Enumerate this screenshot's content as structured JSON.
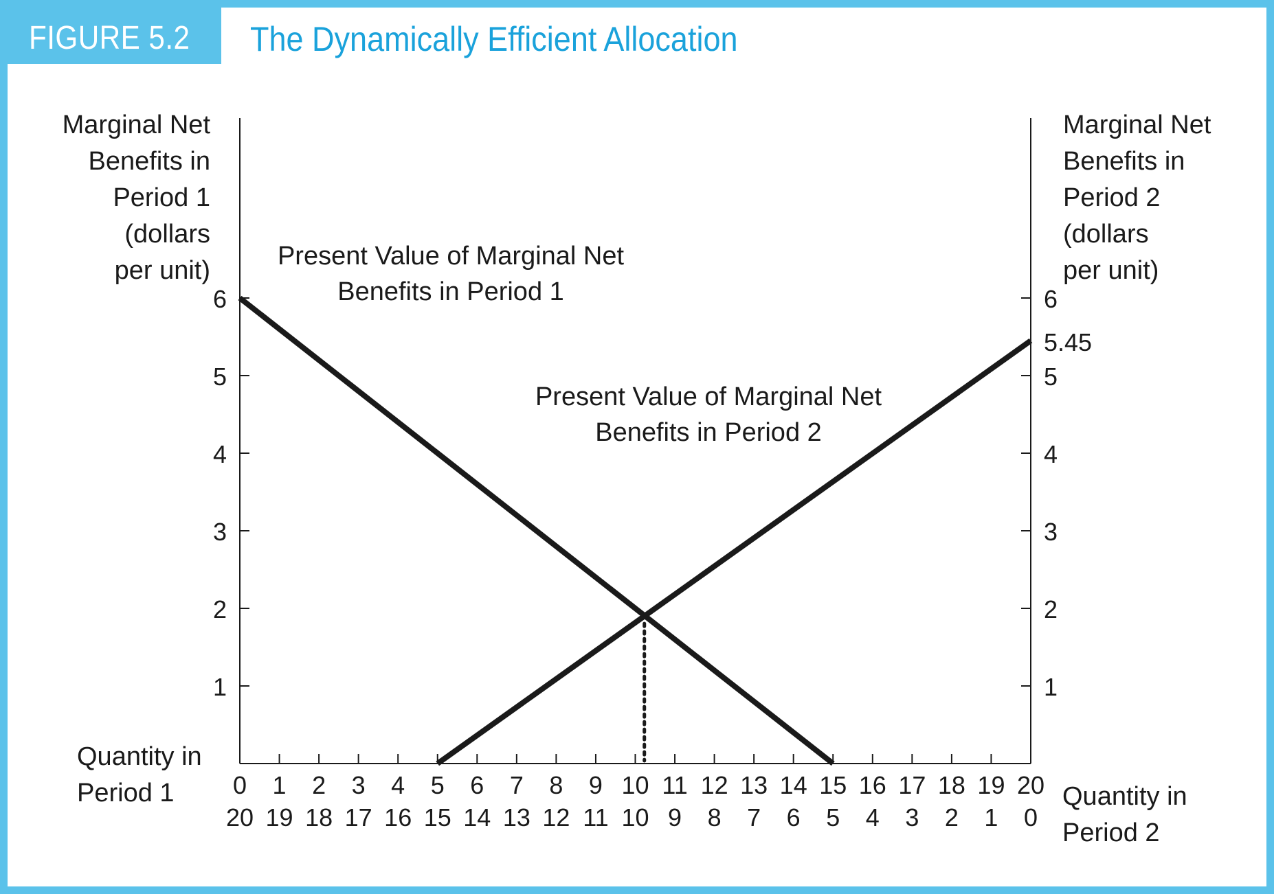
{
  "figure": {
    "label": "FIGURE 5.2",
    "title": "The Dynamically Efficient Allocation"
  },
  "colors": {
    "frame": "#5bc2ea",
    "title": "#1aa2db",
    "line": "#1a1a1a"
  },
  "chart_data": {
    "type": "line",
    "left_axis_label": [
      "Marginal Net",
      "Benefits in",
      "Period 1",
      "(dollars",
      "per unit)"
    ],
    "right_axis_label": [
      "Marginal Net",
      "Benefits in",
      "Period 2",
      "(dollars",
      "per unit)"
    ],
    "x_label_period1": [
      "Quantity in",
      "Period 1"
    ],
    "x_label_period2": [
      "Quantity in",
      "Period 2"
    ],
    "xlim": [
      0,
      20
    ],
    "ylim": [
      0,
      6
    ],
    "left_y_ticks": [
      1,
      2,
      3,
      4,
      5,
      6
    ],
    "right_y_ticks": [
      1,
      2,
      3,
      4,
      5,
      6
    ],
    "right_extra_tick_label": "5.45",
    "x_tick_labels_period1": [
      "0",
      "1",
      "2",
      "3",
      "4",
      "5",
      "6",
      "7",
      "8",
      "9",
      "10",
      "11",
      "12",
      "13",
      "14",
      "15",
      "16",
      "17",
      "18",
      "19",
      "20"
    ],
    "x_tick_labels_period2": [
      "20",
      "19",
      "18",
      "17",
      "16",
      "15",
      "14",
      "13",
      "12",
      "11",
      "10",
      "9",
      "8",
      "7",
      "6",
      "5",
      "4",
      "3",
      "2",
      "1",
      "0"
    ],
    "series": [
      {
        "name": "Present Value of Marginal Net Benefits in Period 1",
        "label_lines": [
          "Present Value of Marginal Net",
          "Benefits in Period 1"
        ],
        "x": [
          0,
          15
        ],
        "y": [
          6,
          0
        ]
      },
      {
        "name": "Present Value of Marginal Net Benefits in Period 2",
        "label_lines": [
          "Present Value of Marginal Net",
          "Benefits in Period 2"
        ],
        "x": [
          5,
          20
        ],
        "y": [
          0,
          5.45
        ]
      }
    ],
    "intersection": {
      "x": 10.23,
      "y": 1.91
    },
    "grid": false
  }
}
